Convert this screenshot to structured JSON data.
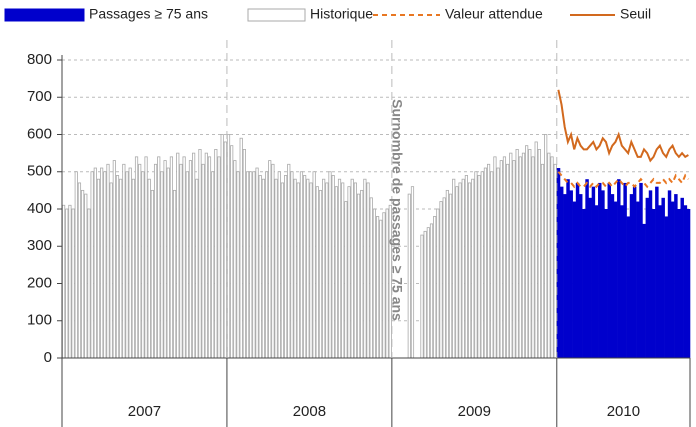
{
  "chart_data": {
    "type": "bar",
    "annotation": "Surnombre de passages ≥ 75 ans",
    "legend": [
      {
        "name": "Passages ≥ 75 ans",
        "color": "#0000cc",
        "style": "bar"
      },
      {
        "name": "Historique",
        "color": "#ffffff",
        "style": "bar"
      },
      {
        "name": "Valeur attendue",
        "color": "#e87722",
        "style": "dashed"
      },
      {
        "name": "Seuil",
        "color": "#d2691e",
        "style": "line"
      }
    ],
    "ylim": [
      0,
      800
    ],
    "yticks": [
      0,
      100,
      200,
      300,
      400,
      500,
      600,
      700,
      800
    ],
    "grid": true,
    "years": [
      {
        "label": "2007",
        "historique": [
          410,
          400,
          410,
          400,
          500,
          470,
          450,
          440,
          400,
          500,
          510,
          480,
          510,
          500,
          520,
          470,
          530,
          490,
          480,
          520,
          500,
          510,
          480,
          540,
          520,
          500,
          540,
          480,
          450,
          520,
          540,
          500,
          530,
          510,
          540,
          450,
          550,
          520,
          540,
          500,
          530,
          550,
          480,
          560,
          520,
          550,
          540,
          500,
          560,
          540,
          600,
          580
        ]
      },
      {
        "label": "2008",
        "historique": [
          600,
          570,
          530,
          500,
          590,
          560,
          500,
          500,
          500,
          510,
          490,
          480,
          500,
          530,
          520,
          480,
          500,
          470,
          490,
          520,
          500,
          480,
          470,
          500,
          490,
          480,
          470,
          500,
          460,
          450,
          480,
          470,
          500,
          490,
          460,
          480,
          470,
          420,
          460,
          480,
          470,
          440,
          450,
          480,
          470,
          430,
          400,
          380,
          370,
          390,
          400,
          410
        ]
      },
      {
        "label": "2009",
        "historique": [
          null,
          null,
          null,
          null,
          null,
          440,
          460,
          null,
          null,
          330,
          340,
          350,
          360,
          380,
          400,
          420,
          430,
          450,
          440,
          480,
          460,
          470,
          480,
          490,
          470,
          480,
          500,
          490,
          500,
          510,
          520,
          500,
          540,
          510,
          530,
          540,
          520,
          550,
          530,
          560,
          540,
          550,
          570,
          560,
          540,
          580,
          560,
          520,
          600,
          550,
          540,
          520
        ]
      },
      {
        "label": "2010",
        "passages": [
          510,
          460,
          440,
          480,
          450,
          420,
          470,
          440,
          400,
          480,
          430,
          460,
          410,
          470,
          450,
          400,
          470,
          440,
          420,
          480,
          410,
          470,
          380,
          440,
          460,
          420,
          470,
          360,
          430,
          450,
          400,
          460,
          410,
          430,
          380,
          450,
          420,
          440,
          400,
          430,
          410,
          400
        ],
        "attendu": [
          500,
          490,
          480,
          470,
          470,
          460,
          470,
          460,
          460,
          470,
          460,
          470,
          460,
          470,
          470,
          460,
          470,
          460,
          470,
          480,
          470,
          460,
          470,
          470,
          460,
          470,
          480,
          470,
          460,
          470,
          480,
          470,
          470,
          480,
          470,
          480,
          470,
          490,
          480,
          470,
          490,
          480
        ],
        "seuil": [
          720,
          680,
          620,
          580,
          600,
          560,
          590,
          570,
          560,
          560,
          570,
          580,
          560,
          570,
          590,
          580,
          550,
          570,
          580,
          600,
          570,
          560,
          550,
          580,
          560,
          540,
          540,
          560,
          550,
          530,
          540,
          560,
          570,
          550,
          540,
          560,
          570,
          550,
          540,
          550,
          540,
          545
        ]
      }
    ]
  }
}
